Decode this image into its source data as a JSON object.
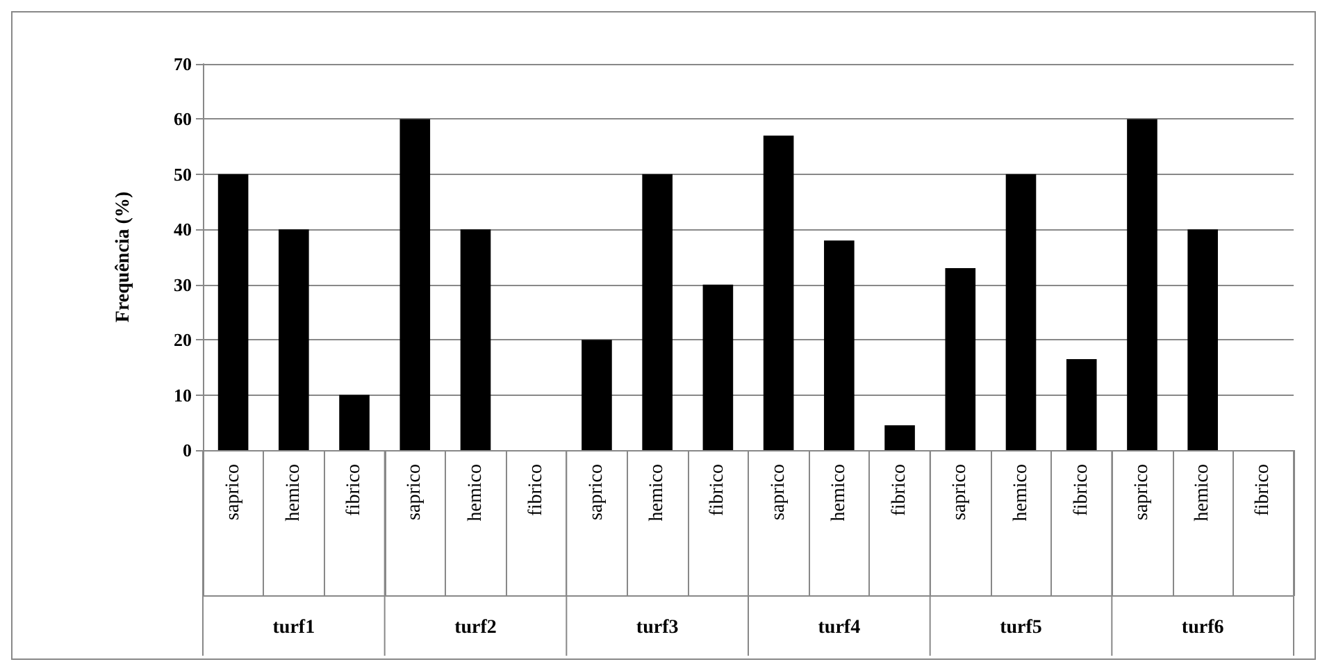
{
  "chart_data": {
    "type": "bar",
    "ylabel": "Frequência (%)",
    "categories": [
      "saprico",
      "hemico",
      "fibrico",
      "saprico",
      "hemico",
      "fibrico",
      "saprico",
      "hemico",
      "fibrico",
      "saprico",
      "hemico",
      "fibrico",
      "saprico",
      "hemico",
      "fibrico",
      "saprico",
      "hemico",
      "fibrico"
    ],
    "values": [
      50,
      40,
      10,
      60,
      40,
      0,
      20,
      50,
      30,
      57,
      38,
      4.5,
      33,
      50,
      16.5,
      60,
      40,
      0
    ],
    "color": "#000000",
    "ylim": [
      0,
      70
    ],
    "yticks": [
      0,
      10,
      20,
      30,
      40,
      50,
      60,
      70
    ],
    "grid": "y",
    "annotations": [
      "turf1",
      "turf2",
      "turf3",
      "turf4",
      "turf5",
      "turf6"
    ]
  }
}
